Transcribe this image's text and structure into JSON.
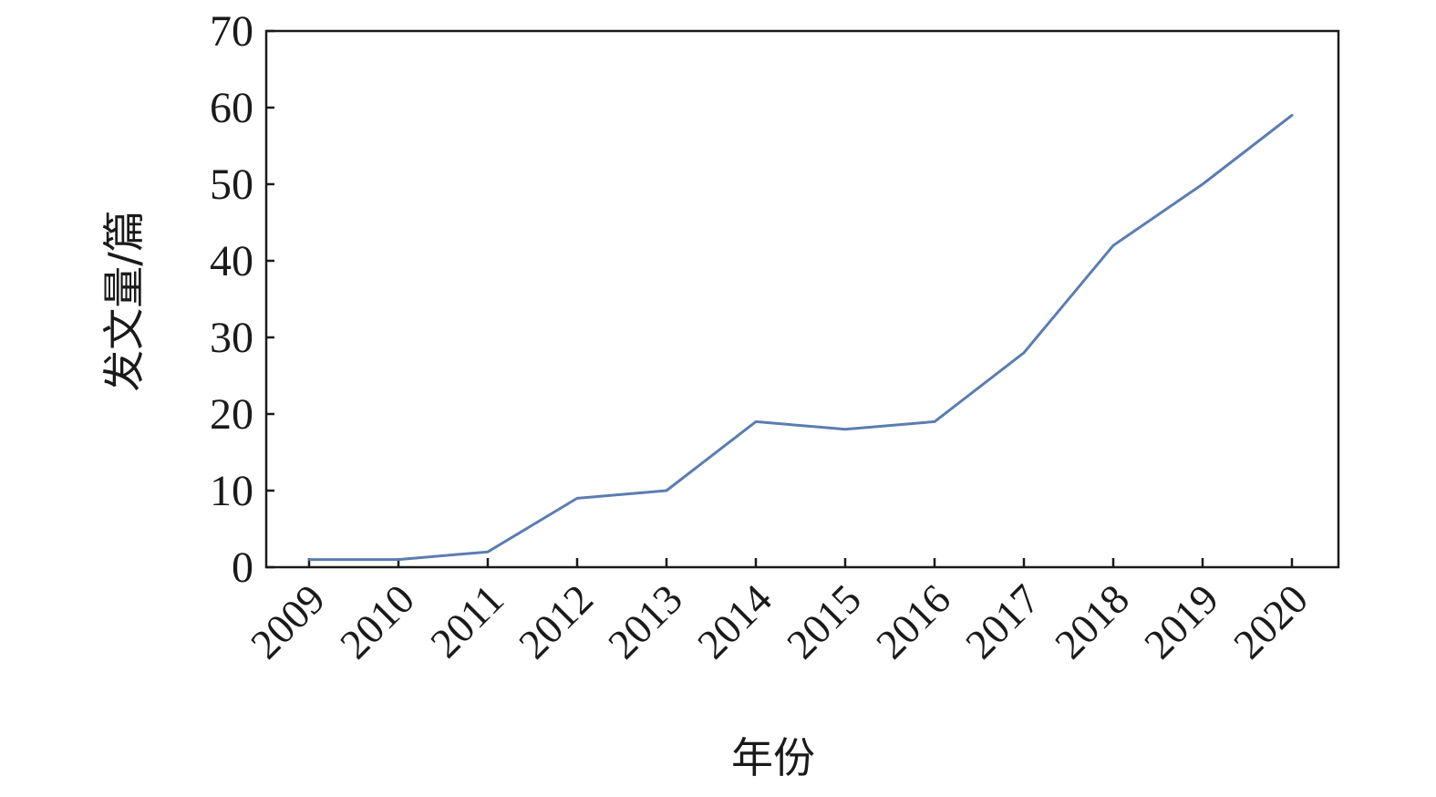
{
  "chart_data": {
    "type": "line",
    "title": "",
    "xlabel": "年份",
    "ylabel": "发文量/篇",
    "categories": [
      "2009",
      "2010",
      "2011",
      "2012",
      "2013",
      "2014",
      "2015",
      "2016",
      "2017",
      "2018",
      "2019",
      "2020"
    ],
    "series": [
      {
        "values": [
          1,
          1,
          2,
          9,
          10,
          19,
          18,
          19,
          28,
          42,
          50,
          59
        ],
        "color": "#5b7db1"
      }
    ],
    "ylim": [
      0,
      70
    ],
    "yticks": [
      "0",
      "10",
      "20",
      "30",
      "40",
      "50",
      "60",
      "70"
    ],
    "grid": false,
    "legend": "none"
  }
}
